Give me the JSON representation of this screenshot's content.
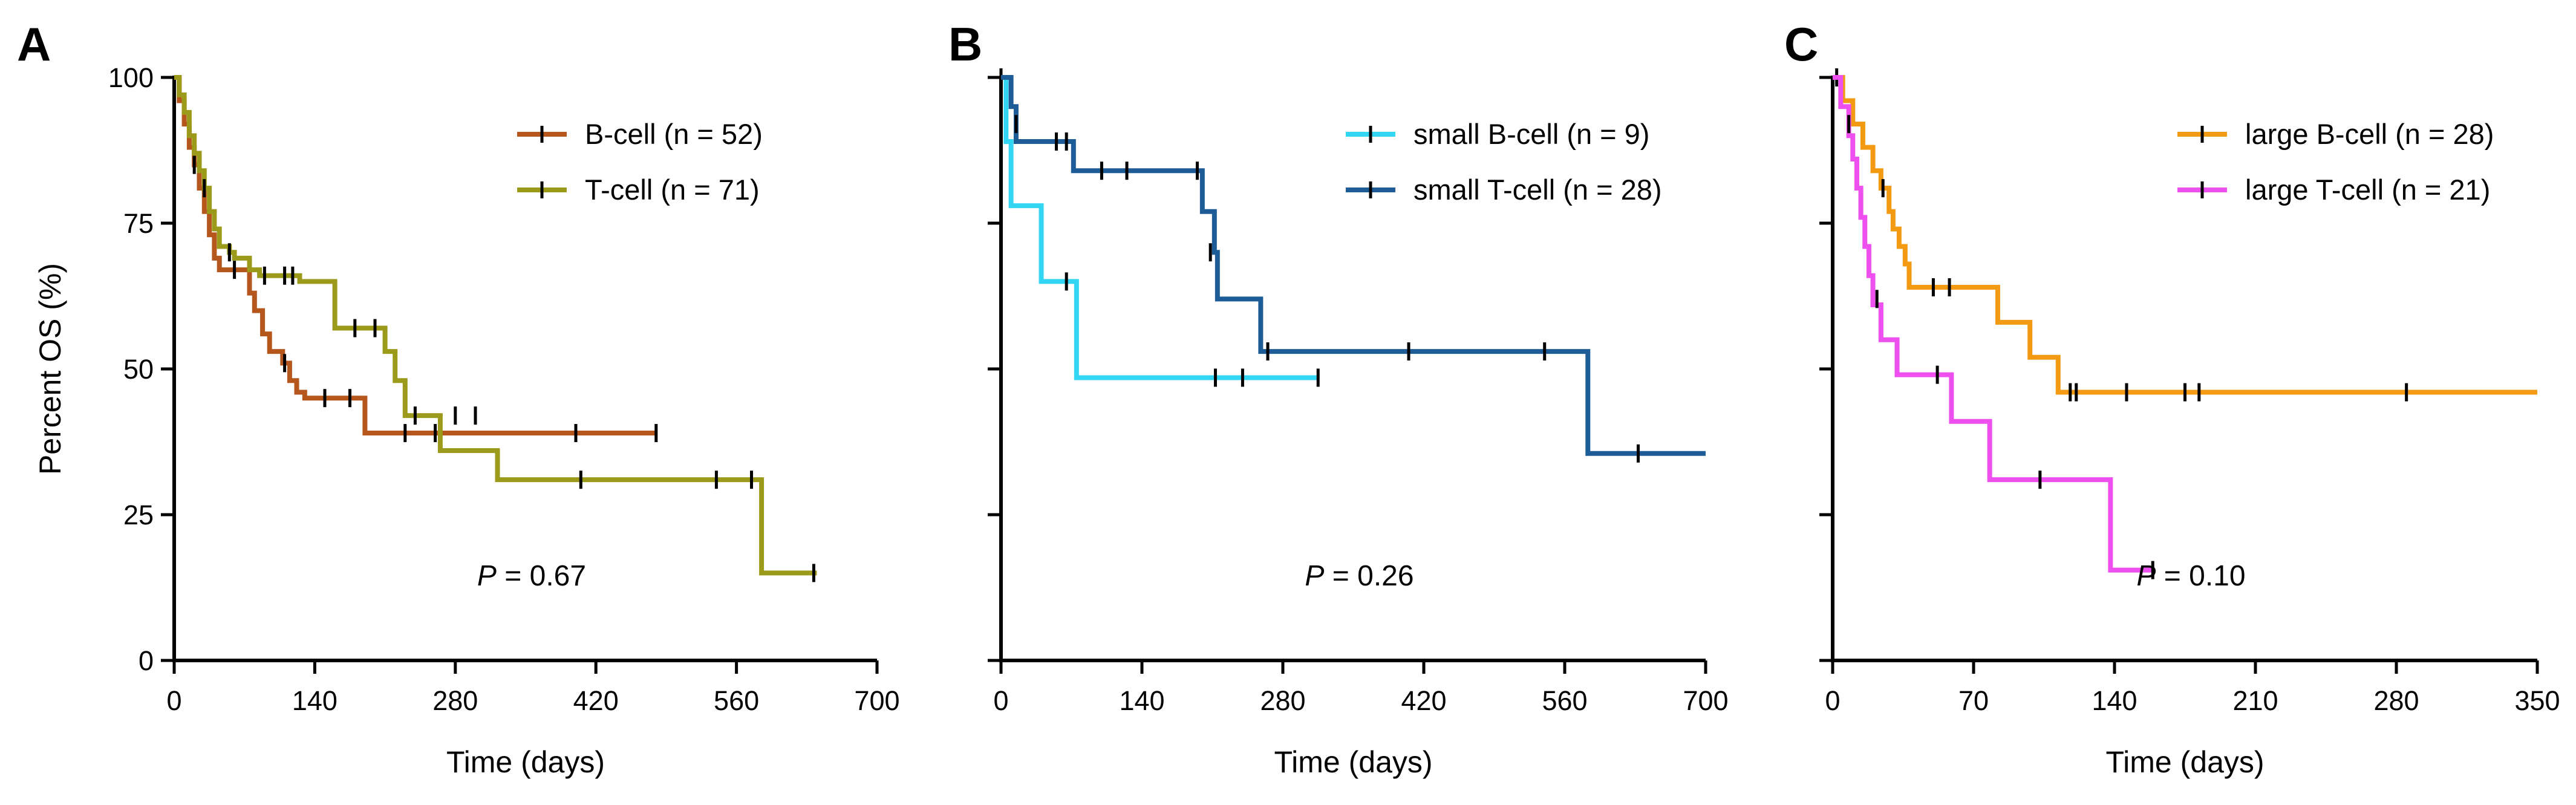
{
  "chart_data": [
    {
      "type": "line",
      "subtype": "kaplan-meier",
      "panel_label": "A",
      "xlabel": "Time (days)",
      "ylabel": "Percent OS (%)",
      "xlim": [
        0,
        700
      ],
      "ylim": [
        0,
        100
      ],
      "xticks": [
        0,
        140,
        280,
        420,
        560,
        700
      ],
      "xtick_labels": [
        "0",
        "140",
        "280",
        "420",
        "560",
        "700"
      ],
      "yticks": [
        0,
        25,
        50,
        75,
        100
      ],
      "ytick_labels": [
        "0",
        "25",
        "50",
        "75",
        "100"
      ],
      "show_ytick_labels": true,
      "legend_position": "top-right",
      "p_prefix": "P",
      "p_value": " = 0.67",
      "series": [
        {
          "name": "B-cell (n = 52)",
          "color": "#b5561c",
          "steps": [
            [
              0,
              100
            ],
            [
              5,
              96
            ],
            [
              10,
              92
            ],
            [
              15,
              88
            ],
            [
              20,
              85
            ],
            [
              25,
              81
            ],
            [
              30,
              77
            ],
            [
              35,
              73
            ],
            [
              40,
              69
            ],
            [
              45,
              67
            ],
            [
              70,
              67
            ],
            [
              75,
              63
            ],
            [
              80,
              60
            ],
            [
              88,
              56
            ],
            [
              95,
              53
            ],
            [
              105,
              53
            ],
            [
              108,
              51
            ],
            [
              115,
              48
            ],
            [
              122,
              46
            ],
            [
              130,
              45
            ],
            [
              185,
              45
            ],
            [
              190,
              39
            ],
            [
              480,
              39
            ]
          ],
          "censor": [
            [
              20,
              85
            ],
            [
              60,
              67
            ],
            [
              110,
              51
            ],
            [
              150,
              45
            ],
            [
              175,
              45
            ],
            [
              230,
              39
            ],
            [
              260,
              39
            ],
            [
              400,
              39
            ],
            [
              480,
              39
            ]
          ]
        },
        {
          "name": "T-cell (n = 71)",
          "color": "#9c9a1a",
          "steps": [
            [
              0,
              100
            ],
            [
              5,
              97
            ],
            [
              10,
              94
            ],
            [
              15,
              90
            ],
            [
              20,
              87
            ],
            [
              25,
              84
            ],
            [
              30,
              81
            ],
            [
              35,
              77
            ],
            [
              40,
              74
            ],
            [
              45,
              71
            ],
            [
              55,
              70
            ],
            [
              60,
              69
            ],
            [
              75,
              67
            ],
            [
              85,
              66
            ],
            [
              95,
              66
            ],
            [
              120,
              66
            ],
            [
              125,
              65
            ],
            [
              155,
              65
            ],
            [
              160,
              57
            ],
            [
              200,
              57
            ],
            [
              210,
              53
            ],
            [
              220,
              48
            ],
            [
              230,
              42
            ],
            [
              260,
              42
            ],
            [
              265,
              36
            ],
            [
              320,
              36
            ],
            [
              322,
              31
            ],
            [
              580,
              31
            ],
            [
              585,
              15
            ],
            [
              640,
              15
            ]
          ],
          "censor": [
            [
              30,
              81
            ],
            [
              55,
              70
            ],
            [
              90,
              66
            ],
            [
              110,
              66
            ],
            [
              118,
              66
            ],
            [
              180,
              57
            ],
            [
              200,
              57
            ],
            [
              240,
              42
            ],
            [
              280,
              42
            ],
            [
              300,
              42
            ],
            [
              405,
              31
            ],
            [
              540,
              31
            ],
            [
              575,
              31
            ],
            [
              637,
              15
            ]
          ]
        }
      ]
    },
    {
      "type": "line",
      "subtype": "kaplan-meier",
      "panel_label": "B",
      "xlabel": "Time (days)",
      "ylabel": "",
      "xlim": [
        0,
        700
      ],
      "ylim": [
        0,
        100
      ],
      "xticks": [
        0,
        140,
        280,
        420,
        560,
        700
      ],
      "xtick_labels": [
        "0",
        "140",
        "280",
        "420",
        "560",
        "700"
      ],
      "yticks": [
        0,
        25,
        50,
        75,
        100
      ],
      "ytick_labels": [
        "",
        "",
        "",
        "",
        ""
      ],
      "show_ytick_labels": false,
      "legend_position": "top-right",
      "p_prefix": "P",
      "p_value": " = 0.26",
      "series": [
        {
          "name": "small B-cell (n = 9)",
          "color": "#33d6f2",
          "steps": [
            [
              0,
              100
            ],
            [
              5,
              89
            ],
            [
              10,
              78
            ],
            [
              37,
              78
            ],
            [
              40,
              65
            ],
            [
              70,
              65
            ],
            [
              75,
              48.5
            ],
            [
              315,
              48.5
            ]
          ],
          "censor": [
            [
              0,
              100
            ],
            [
              65,
              65
            ],
            [
              213,
              48.5
            ],
            [
              240,
              48.5
            ],
            [
              315,
              48.5
            ]
          ]
        },
        {
          "name": "small T-cell (n = 28)",
          "color": "#1d5c96",
          "steps": [
            [
              0,
              100
            ],
            [
              10,
              95
            ],
            [
              15,
              89
            ],
            [
              70,
              89
            ],
            [
              72,
              84
            ],
            [
              195,
              84
            ],
            [
              200,
              77
            ],
            [
              212,
              70
            ],
            [
              215,
              62
            ],
            [
              250,
              62
            ],
            [
              258,
              53
            ],
            [
              580,
              53
            ],
            [
              583,
              35.5
            ],
            [
              700,
              35.5
            ]
          ],
          "censor": [
            [
              15,
              92
            ],
            [
              55,
              89
            ],
            [
              65,
              89
            ],
            [
              100,
              84
            ],
            [
              125,
              84
            ],
            [
              195,
              84
            ],
            [
              208,
              70
            ],
            [
              265,
              53
            ],
            [
              405,
              53
            ],
            [
              540,
              53
            ],
            [
              633,
              35.5
            ]
          ]
        }
      ]
    },
    {
      "type": "line",
      "subtype": "kaplan-meier",
      "panel_label": "C",
      "xlabel": "Time (days)",
      "ylabel": "",
      "xlim": [
        0,
        350
      ],
      "ylim": [
        0,
        100
      ],
      "xticks": [
        0,
        70,
        140,
        210,
        280,
        350
      ],
      "xtick_labels": [
        "0",
        "70",
        "140",
        "210",
        "280",
        "350"
      ],
      "yticks": [
        0,
        25,
        50,
        75,
        100
      ],
      "ytick_labels": [
        "",
        "",
        "",
        "",
        ""
      ],
      "show_ytick_labels": false,
      "legend_position": "top-right",
      "p_prefix": "P",
      "p_value": " = 0.10",
      "series": [
        {
          "name": "large B-cell (n = 28)",
          "color": "#f39a13",
          "steps": [
            [
              0,
              100
            ],
            [
              5,
              96
            ],
            [
              10,
              92
            ],
            [
              15,
              88
            ],
            [
              20,
              84
            ],
            [
              24,
              81
            ],
            [
              28,
              77
            ],
            [
              30,
              74
            ],
            [
              33,
              71
            ],
            [
              36,
              68
            ],
            [
              38,
              64
            ],
            [
              80,
              64
            ],
            [
              82,
              58
            ],
            [
              96,
              58
            ],
            [
              98,
              52
            ],
            [
              108,
              52
            ],
            [
              112,
              46
            ],
            [
              350,
              46
            ]
          ],
          "censor": [
            [
              2,
              100
            ],
            [
              25,
              81
            ],
            [
              50,
              64
            ],
            [
              58,
              64
            ],
            [
              118,
              46
            ],
            [
              121,
              46
            ],
            [
              146,
              46
            ],
            [
              175,
              46
            ],
            [
              182,
              46
            ],
            [
              285,
              46
            ]
          ]
        },
        {
          "name": "large T-cell (n = 21)",
          "color": "#ee4fef",
          "steps": [
            [
              0,
              100
            ],
            [
              4,
              95
            ],
            [
              8,
              90
            ],
            [
              10,
              86
            ],
            [
              12,
              81
            ],
            [
              14,
              76
            ],
            [
              16,
              71
            ],
            [
              18,
              66
            ],
            [
              20,
              61
            ],
            [
              24,
              55
            ],
            [
              30,
              55
            ],
            [
              32,
              49
            ],
            [
              57,
              49
            ],
            [
              59,
              41
            ],
            [
              76,
              41
            ],
            [
              78,
              31
            ],
            [
              136,
              31
            ],
            [
              138,
              15.5
            ],
            [
              160,
              15.5
            ]
          ],
          "censor": [
            [
              8,
              92
            ],
            [
              22,
              62
            ],
            [
              52,
              49
            ],
            [
              103,
              31
            ],
            [
              159,
              15.5
            ]
          ]
        }
      ]
    }
  ]
}
